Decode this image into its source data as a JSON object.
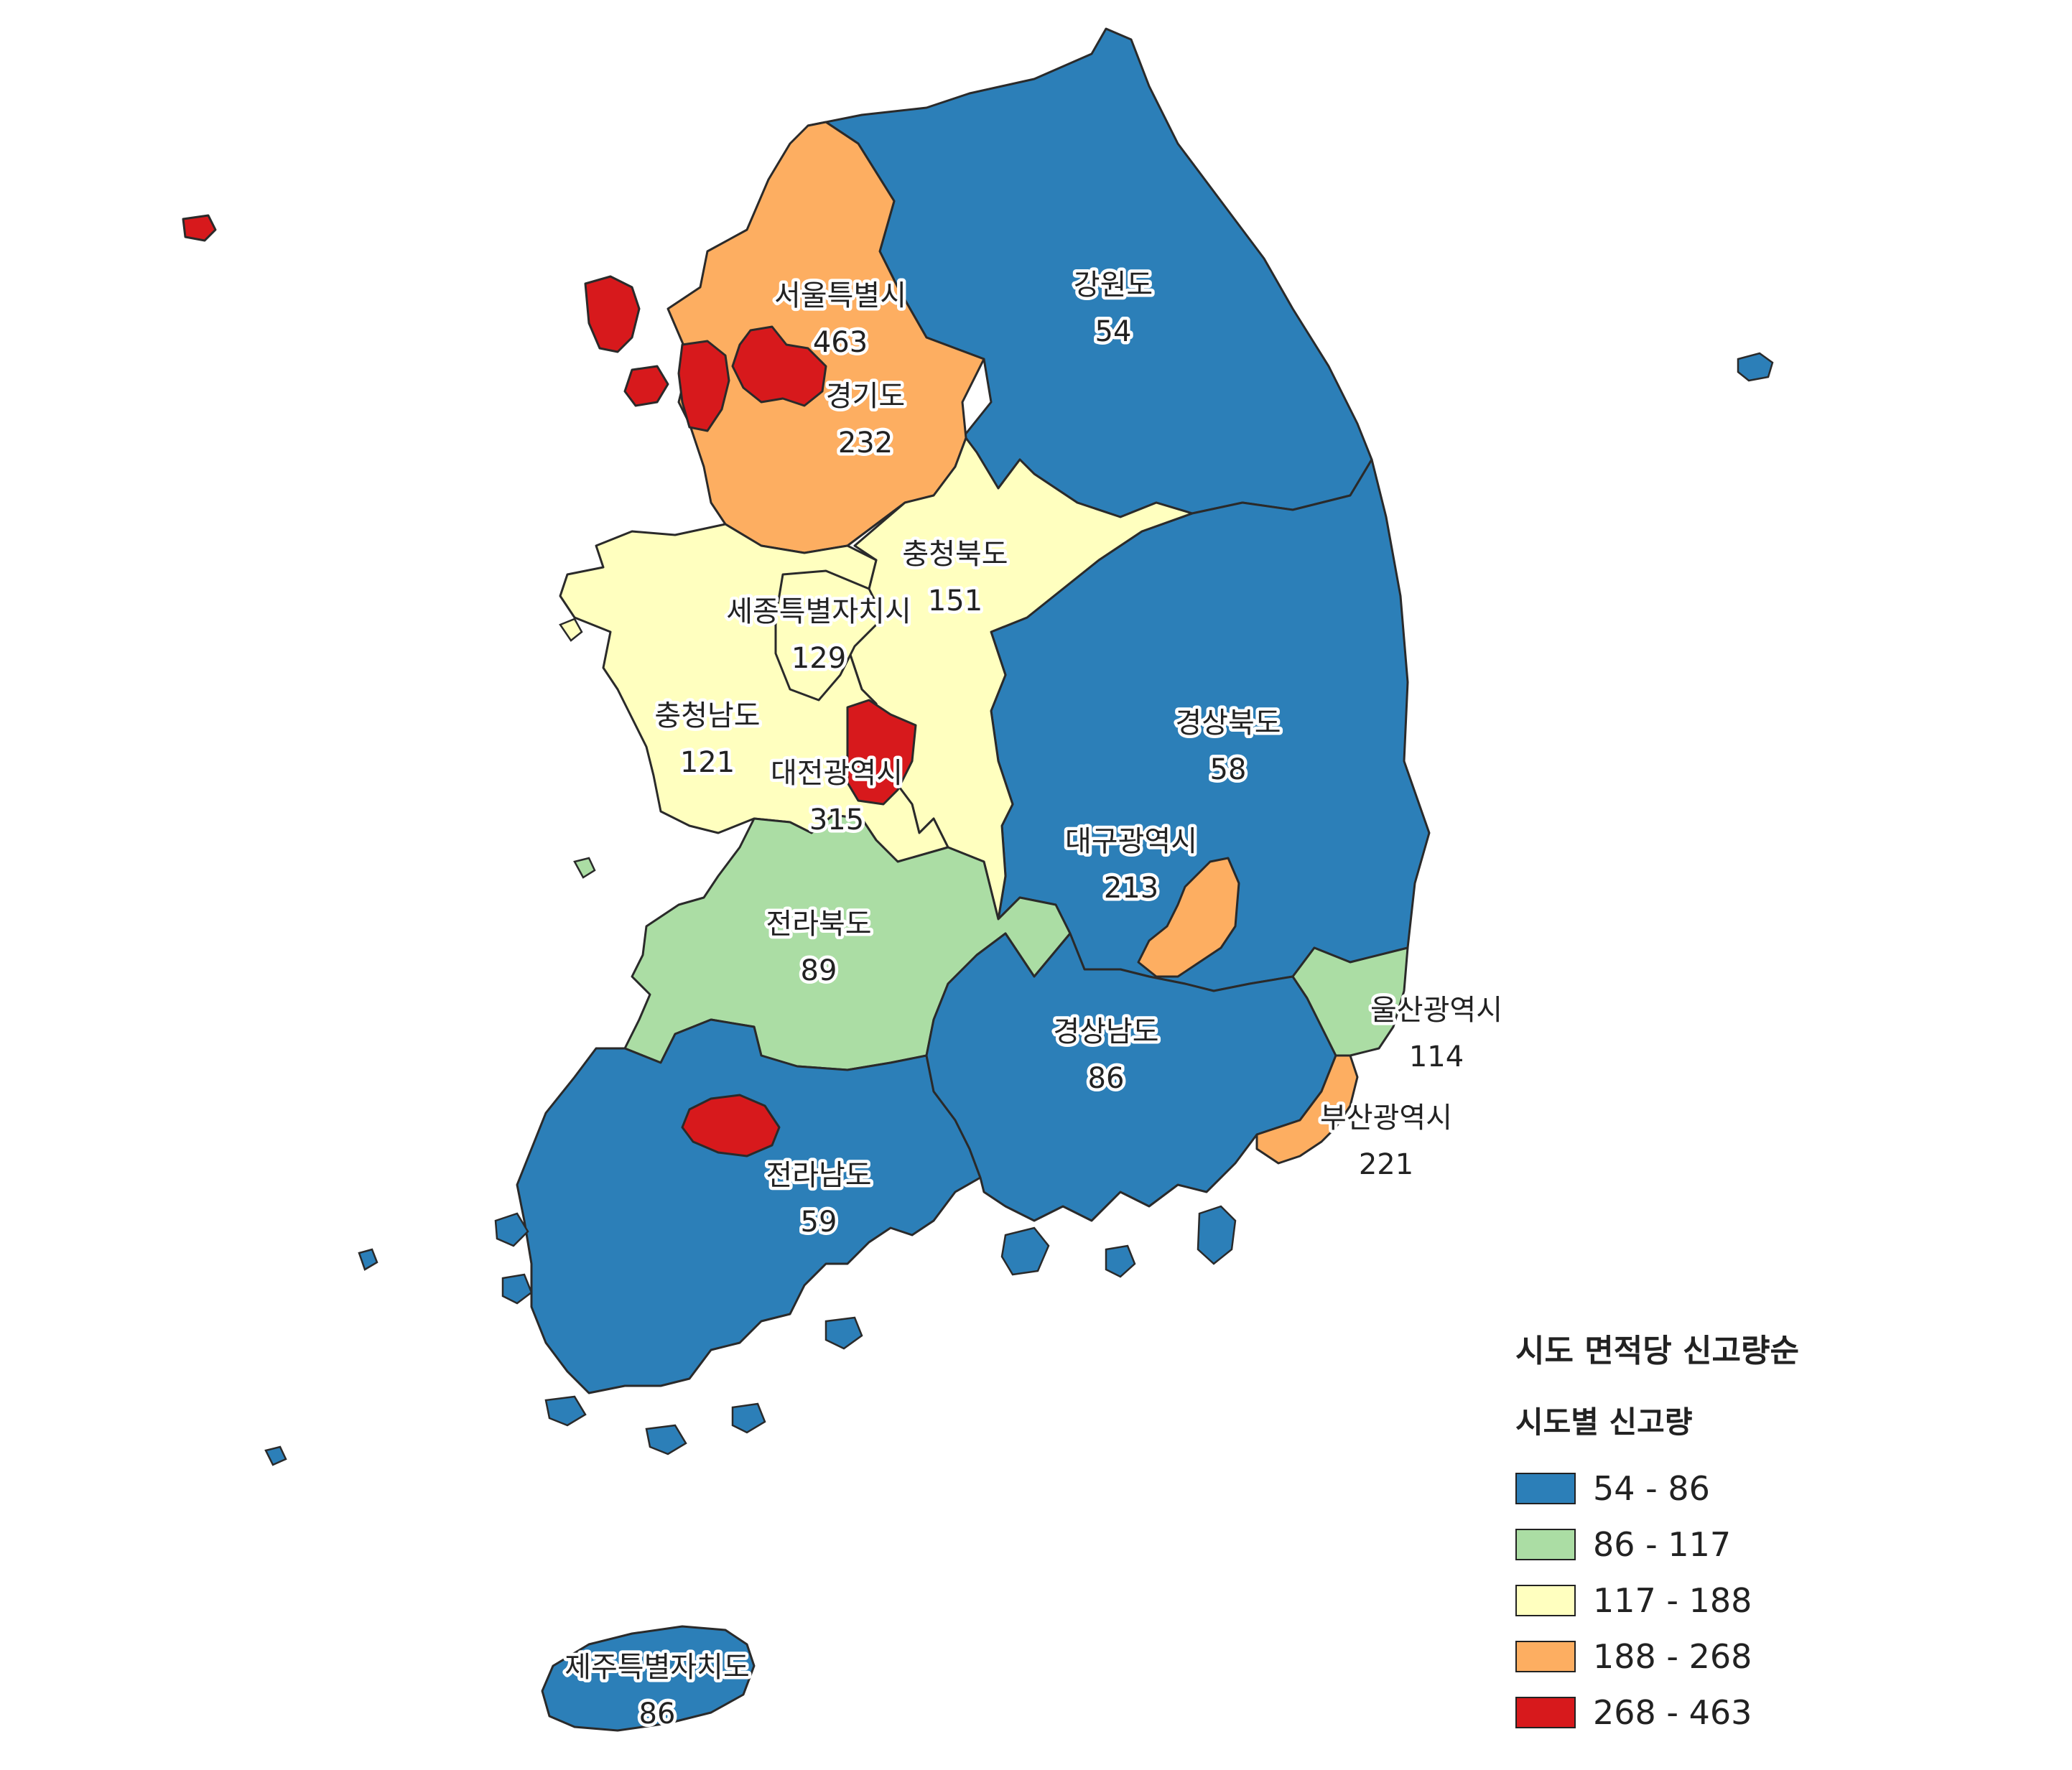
{
  "legend": {
    "title": "시도 면적당 신고량순",
    "subtitle": "시도별 신고량",
    "classes": [
      {
        "label": "54 - 86",
        "color": "#2c7fb8"
      },
      {
        "label": "86 - 117",
        "color": "#abdda4"
      },
      {
        "label": "117 - 188",
        "color": "#ffffbf"
      },
      {
        "label": "188 - 268",
        "color": "#fdae61"
      },
      {
        "label": "268 - 463",
        "color": "#d7191c"
      }
    ]
  },
  "regions": [
    {
      "id": "seoul",
      "name": "서울특별시",
      "value": "463",
      "color": "#d7191c"
    },
    {
      "id": "gyeonggi",
      "name": "경기도",
      "value": "232",
      "color": "#fdae61"
    },
    {
      "id": "gangwon",
      "name": "강원도",
      "value": "54",
      "color": "#2c7fb8"
    },
    {
      "id": "chungbuk",
      "name": "충청북도",
      "value": "151",
      "color": "#ffffbf"
    },
    {
      "id": "sejong",
      "name": "세종특별자치시",
      "value": "129",
      "color": "#ffffbf"
    },
    {
      "id": "chungnam",
      "name": "충청남도",
      "value": "121",
      "color": "#ffffbf"
    },
    {
      "id": "daejeon",
      "name": "대전광역시",
      "value": "315",
      "color": "#d7191c"
    },
    {
      "id": "gyeongbuk",
      "name": "경상북도",
      "value": "58",
      "color": "#2c7fb8"
    },
    {
      "id": "daegu",
      "name": "대구광역시",
      "value": "213",
      "color": "#fdae61"
    },
    {
      "id": "jeonbuk",
      "name": "전라북도",
      "value": "89",
      "color": "#abdda4"
    },
    {
      "id": "ulsan",
      "name": "울산광역시",
      "value": "114",
      "color": "#abdda4"
    },
    {
      "id": "gyeongnam",
      "name": "경상남도",
      "value": "86",
      "color": "#2c7fb8"
    },
    {
      "id": "busan",
      "name": "부산광역시",
      "value": "221",
      "color": "#fdae61"
    },
    {
      "id": "jeonnam",
      "name": "전라남도",
      "value": "59",
      "color": "#2c7fb8"
    },
    {
      "id": "jeju",
      "name": "제주특별자치도",
      "value": "86",
      "color": "#2c7fb8"
    }
  ],
  "extra_patches": [
    {
      "id": "incheon",
      "color": "#d7191c"
    },
    {
      "id": "gwangju",
      "color": "#d7191c"
    }
  ]
}
